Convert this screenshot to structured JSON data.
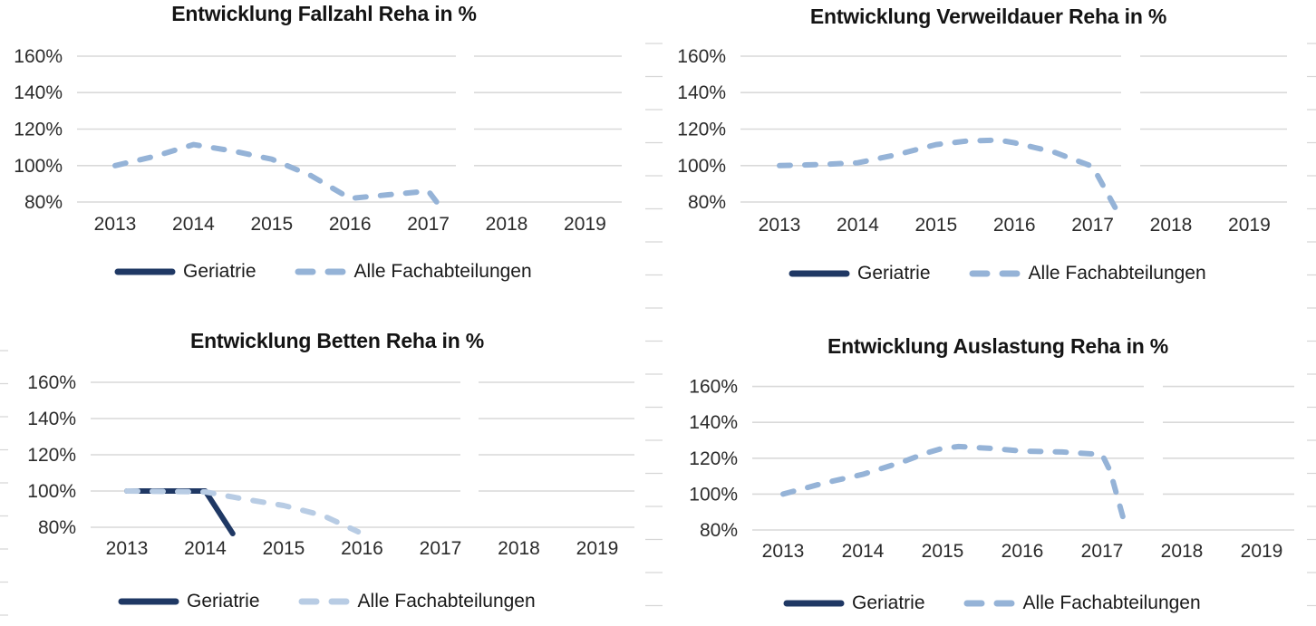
{
  "colors": {
    "geriatrie": "#1f3864",
    "alle_medium": "#95b3d7",
    "alle_pale": "#b8cce4",
    "gridline": "#d9d9d9",
    "axis_text": "#2b2b2b",
    "title_text": "#141414"
  },
  "chart_data": [
    {
      "type": "line",
      "title": "Entwicklung Fallzahl Reha in %",
      "xlabel": "",
      "ylabel": "",
      "ylim": [
        80,
        160
      ],
      "grid": true,
      "legend_position": "bottom",
      "x_tick_values": [
        2013,
        2014,
        2015,
        2016,
        2017,
        2018,
        2019
      ],
      "x_tick_labels": [
        "2013",
        "2014",
        "2015",
        "2016",
        "2017",
        "2018",
        "2019"
      ],
      "y_tick_values": [
        160,
        140,
        120,
        100,
        80
      ],
      "y_tick_labels": [
        "160%",
        "140%",
        "120%",
        "100%",
        "80%"
      ],
      "series": [
        {
          "name": "Geriatrie",
          "style": "solid",
          "color": "#1f3864",
          "points": []
        },
        {
          "name": "Alle Fachabteilungen",
          "style": "dashed",
          "color": "#95b3d7",
          "points": [
            [
              2013,
              100
            ],
            [
              2013.5,
              105
            ],
            [
              2014,
              111.5
            ],
            [
              2014.5,
              108
            ],
            [
              2015,
              103.5
            ],
            [
              2015.5,
              94.5
            ],
            [
              2016,
              82
            ],
            [
              2016.5,
              84
            ],
            [
              2017,
              86
            ],
            [
              2017.15,
              77.5
            ]
          ]
        }
      ]
    },
    {
      "type": "line",
      "title": "Entwicklung Verweildauer Reha in %",
      "xlabel": "",
      "ylabel": "",
      "ylim": [
        80,
        160
      ],
      "grid": true,
      "legend_position": "bottom",
      "x_tick_values": [
        2013,
        2014,
        2015,
        2016,
        2017,
        2018,
        2019
      ],
      "x_tick_labels": [
        "2013",
        "2014",
        "2015",
        "2016",
        "2017",
        "2018",
        "2019"
      ],
      "y_tick_values": [
        160,
        140,
        120,
        100,
        80
      ],
      "y_tick_labels": [
        "160%",
        "140%",
        "120%",
        "100%",
        "80%"
      ],
      "series": [
        {
          "name": "Geriatrie",
          "style": "solid",
          "color": "#1f3864",
          "points": []
        },
        {
          "name": "Alle Fachabteilungen",
          "style": "dashed",
          "color": "#95b3d7",
          "points": [
            [
              2013,
              100
            ],
            [
              2013.5,
              100.5
            ],
            [
              2014,
              101.5
            ],
            [
              2014.5,
              106
            ],
            [
              2015,
              111.5
            ],
            [
              2015.4,
              113.5
            ],
            [
              2015.8,
              114
            ],
            [
              2016,
              112.5
            ],
            [
              2016.5,
              107.5
            ],
            [
              2017,
              99.5
            ],
            [
              2017.3,
              76
            ]
          ]
        }
      ]
    },
    {
      "type": "line",
      "title": "Entwicklung Betten Reha in %",
      "xlabel": "",
      "ylabel": "",
      "ylim": [
        80,
        160
      ],
      "grid": true,
      "legend_position": "bottom",
      "x_tick_values": [
        2013,
        2014,
        2015,
        2016,
        2017,
        2018,
        2019
      ],
      "x_tick_labels": [
        "2013",
        "2014",
        "2015",
        "2016",
        "2017",
        "2018",
        "2019"
      ],
      "y_tick_values": [
        160,
        140,
        120,
        100,
        80
      ],
      "y_tick_labels": [
        "160%",
        "140%",
        "120%",
        "100%",
        "80%"
      ],
      "series": [
        {
          "name": "Geriatrie",
          "style": "solid",
          "color": "#1f3864",
          "points": [
            [
              2013,
              100
            ],
            [
              2014,
              100
            ],
            [
              2014.35,
              76.5
            ]
          ]
        },
        {
          "name": "Alle Fachabteilungen",
          "style": "dashed",
          "color": "#b8cce4",
          "points": [
            [
              2013,
              100
            ],
            [
              2014,
              99.5
            ],
            [
              2014.5,
              95.5
            ],
            [
              2015,
              92
            ],
            [
              2015.5,
              86.5
            ],
            [
              2015.95,
              77.5
            ]
          ]
        }
      ]
    },
    {
      "type": "line",
      "title": "Entwicklung Auslastung Reha in %",
      "xlabel": "",
      "ylabel": "",
      "ylim": [
        80,
        160
      ],
      "grid": true,
      "legend_position": "bottom",
      "x_tick_values": [
        2013,
        2014,
        2015,
        2016,
        2017,
        2018,
        2019
      ],
      "x_tick_labels": [
        "2013",
        "2014",
        "2015",
        "2016",
        "2017",
        "2018",
        "2019"
      ],
      "y_tick_values": [
        160,
        140,
        120,
        100,
        80
      ],
      "y_tick_labels": [
        "160%",
        "140%",
        "120%",
        "100%",
        "80%"
      ],
      "series": [
        {
          "name": "Geriatrie",
          "style": "solid",
          "color": "#1f3864",
          "points": []
        },
        {
          "name": "Alle Fachabteilungen",
          "style": "dashed",
          "color": "#95b3d7",
          "points": [
            [
              2013,
              100
            ],
            [
              2013.5,
              106
            ],
            [
              2014,
              111
            ],
            [
              2014.5,
              118
            ],
            [
              2014.8,
              123
            ],
            [
              2015,
              125.5
            ],
            [
              2015.2,
              126.5
            ],
            [
              2015.6,
              125.5
            ],
            [
              2016,
              124
            ],
            [
              2016.5,
              123.5
            ],
            [
              2017,
              122
            ],
            [
              2017.1,
              113
            ],
            [
              2017.3,
              81
            ]
          ]
        }
      ]
    }
  ]
}
